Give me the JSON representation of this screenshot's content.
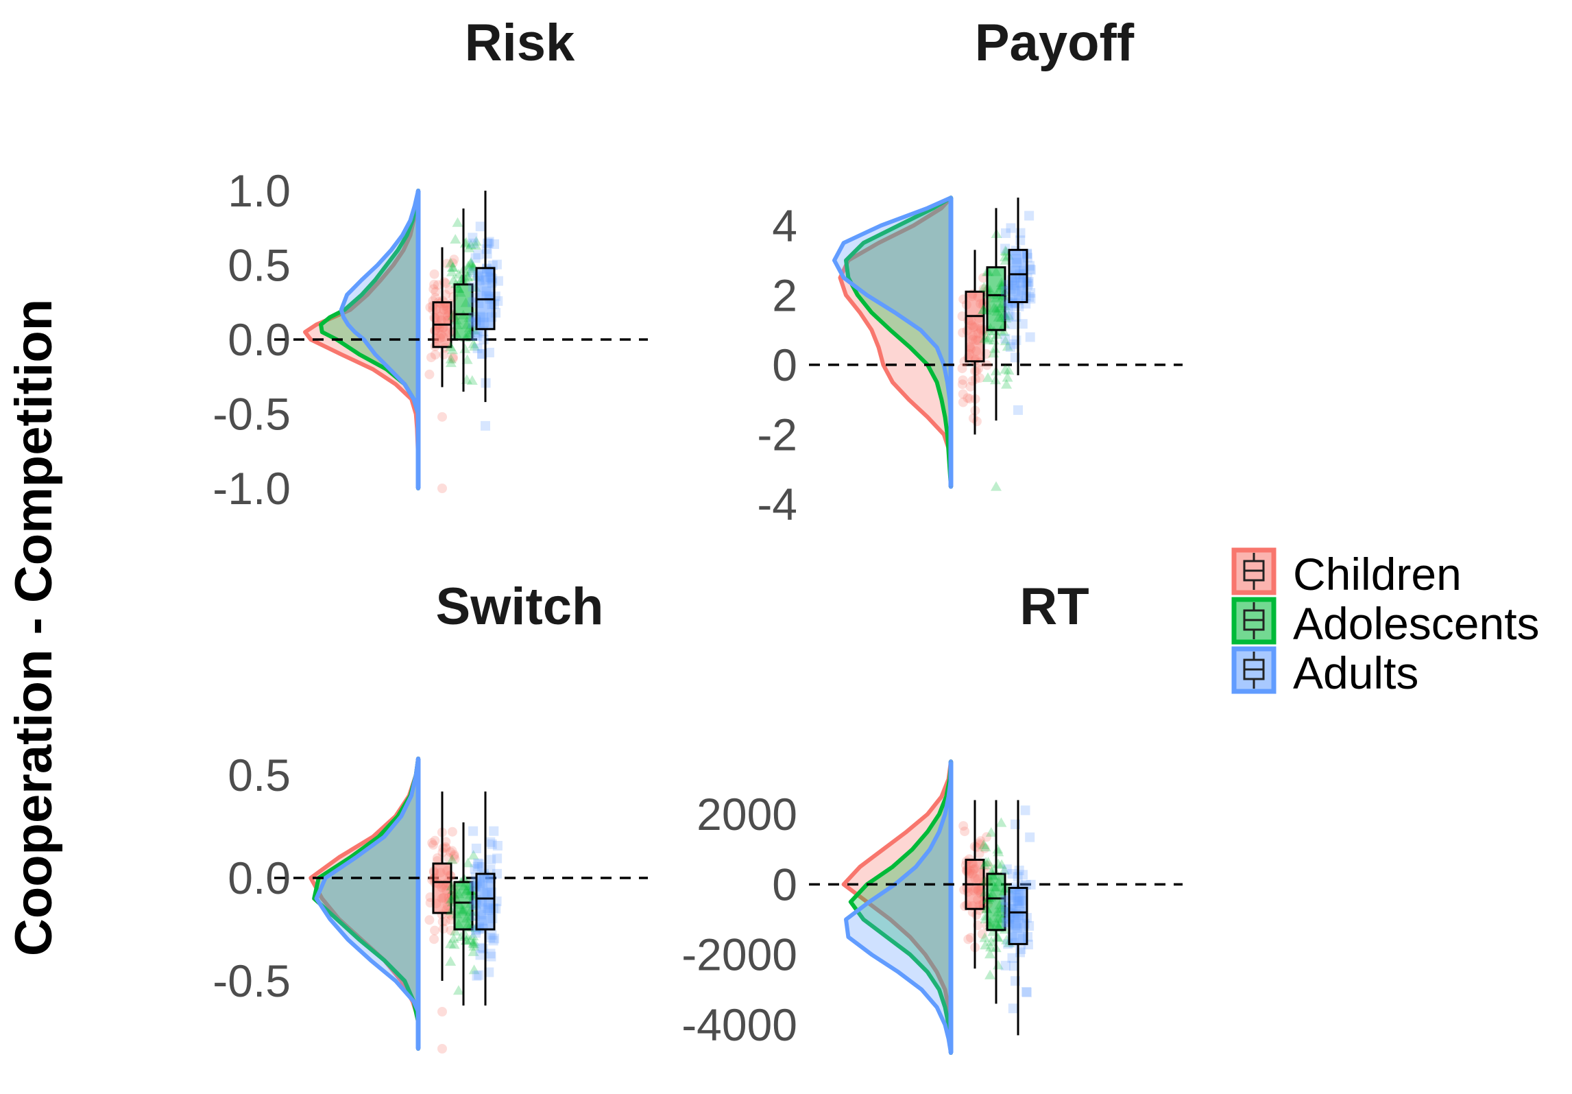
{
  "ylabel": "Cooperation - Competition",
  "colors": {
    "Children": "#f8766d",
    "Adolescents": "#00ba38",
    "Adults": "#619cff"
  },
  "legend": {
    "position": "right",
    "items": [
      {
        "label": "Children",
        "color": "#f8766d"
      },
      {
        "label": "Adolescents",
        "color": "#00ba38"
      },
      {
        "label": "Adults",
        "color": "#619cff"
      }
    ]
  },
  "chart_data": [
    {
      "type": "raincloud",
      "title": "Risk",
      "ylim": [
        -1.0,
        1.0
      ],
      "yticks": [
        1.0,
        0.5,
        0.0,
        -0.5,
        -1.0
      ],
      "ytick_labels": [
        "1.0",
        "0.5",
        "0.0",
        "-0.5",
        "-1.0"
      ],
      "reference_line": 0,
      "groups": [
        {
          "name": "Children",
          "whisker_low": -0.32,
          "q1": -0.05,
          "median": 0.1,
          "q3": 0.25,
          "whisker_high": 0.62,
          "outliers": [
            -0.52,
            -1.0
          ]
        },
        {
          "name": "Adolescents",
          "whisker_low": -0.35,
          "q1": 0.0,
          "median": 0.17,
          "q3": 0.37,
          "whisker_high": 0.88,
          "outliers": []
        },
        {
          "name": "Adults",
          "whisker_low": -0.42,
          "q1": 0.07,
          "median": 0.27,
          "q3": 0.48,
          "whisker_high": 1.0,
          "outliers": [
            -0.58
          ]
        }
      ],
      "density": {
        "y": [
          -1.0,
          -0.8,
          -0.6,
          -0.5,
          -0.4,
          -0.3,
          -0.2,
          -0.1,
          0.0,
          0.05,
          0.1,
          0.15,
          0.2,
          0.3,
          0.4,
          0.5,
          0.6,
          0.7,
          0.8,
          0.9,
          1.0
        ],
        "Children": [
          0.0,
          0.0,
          0.01,
          0.02,
          0.06,
          0.2,
          0.4,
          0.68,
          0.95,
          1.0,
          0.9,
          0.75,
          0.6,
          0.45,
          0.33,
          0.22,
          0.13,
          0.07,
          0.04,
          0.02,
          0.0
        ],
        "Adolescents": [
          0.0,
          0.0,
          0.0,
          0.0,
          0.04,
          0.12,
          0.28,
          0.52,
          0.72,
          0.85,
          0.86,
          0.78,
          0.65,
          0.5,
          0.38,
          0.28,
          0.18,
          0.1,
          0.05,
          0.02,
          0.0
        ],
        "Adults": [
          0.0,
          0.0,
          0.0,
          0.0,
          0.04,
          0.12,
          0.25,
          0.38,
          0.48,
          0.56,
          0.62,
          0.66,
          0.68,
          0.63,
          0.5,
          0.36,
          0.24,
          0.14,
          0.07,
          0.03,
          0.0
        ]
      }
    },
    {
      "type": "raincloud",
      "title": "Payoff",
      "ylim": [
        -4,
        5
      ],
      "yticks": [
        4,
        2,
        0,
        -2,
        -4
      ],
      "ytick_labels": [
        "4",
        "2",
        "0",
        "-2",
        "-4"
      ],
      "reference_line": 0,
      "groups": [
        {
          "name": "Children",
          "whisker_low": -2.0,
          "q1": 0.1,
          "median": 1.4,
          "q3": 2.1,
          "whisker_high": 3.3,
          "outliers": []
        },
        {
          "name": "Adolescents",
          "whisker_low": -1.6,
          "q1": 1.0,
          "median": 2.0,
          "q3": 2.8,
          "whisker_high": 4.5,
          "outliers": [
            -3.5
          ]
        },
        {
          "name": "Adults",
          "whisker_low": -0.3,
          "q1": 1.8,
          "median": 2.6,
          "q3": 3.3,
          "whisker_high": 4.8,
          "outliers": [
            -1.3
          ]
        }
      ],
      "density": {
        "y": [
          -3.5,
          -3.0,
          -2.5,
          -2.0,
          -1.5,
          -1.0,
          -0.5,
          0.0,
          0.5,
          1.0,
          1.5,
          2.0,
          2.5,
          3.0,
          3.5,
          4.0,
          4.5,
          4.8
        ],
        "Children": [
          0.0,
          0.0,
          0.01,
          0.06,
          0.2,
          0.36,
          0.5,
          0.58,
          0.62,
          0.68,
          0.78,
          0.9,
          0.95,
          0.88,
          0.62,
          0.32,
          0.08,
          0.0
        ],
        "Adolescents": [
          0.0,
          0.01,
          0.02,
          0.03,
          0.05,
          0.08,
          0.12,
          0.2,
          0.35,
          0.52,
          0.68,
          0.8,
          0.88,
          0.9,
          0.75,
          0.45,
          0.15,
          0.0
        ],
        "Adults": [
          0.0,
          0.0,
          0.0,
          0.0,
          0.0,
          0.01,
          0.03,
          0.06,
          0.12,
          0.26,
          0.48,
          0.72,
          0.92,
          1.0,
          0.92,
          0.6,
          0.2,
          0.0
        ]
      }
    },
    {
      "type": "raincloud",
      "title": "Switch",
      "ylim": [
        -0.85,
        0.6
      ],
      "yticks": [
        0.5,
        0.0,
        -0.5
      ],
      "ytick_labels": [
        "0.5",
        "0.0",
        "-0.5"
      ],
      "reference_line": 0,
      "groups": [
        {
          "name": "Children",
          "whisker_low": -0.5,
          "q1": -0.17,
          "median": -0.02,
          "q3": 0.07,
          "whisker_high": 0.42,
          "outliers": [
            -0.65,
            -0.83
          ]
        },
        {
          "name": "Adolescents",
          "whisker_low": -0.62,
          "q1": -0.25,
          "median": -0.12,
          "q3": -0.02,
          "whisker_high": 0.27,
          "outliers": []
        },
        {
          "name": "Adults",
          "whisker_low": -0.62,
          "q1": -0.25,
          "median": -0.1,
          "q3": 0.02,
          "whisker_high": 0.42,
          "outliers": []
        }
      ],
      "density": {
        "y": [
          -0.83,
          -0.7,
          -0.65,
          -0.6,
          -0.5,
          -0.4,
          -0.3,
          -0.2,
          -0.1,
          0.0,
          0.1,
          0.2,
          0.3,
          0.4,
          0.5,
          0.58
        ],
        "Children": [
          0.0,
          0.0,
          0.02,
          0.05,
          0.15,
          0.3,
          0.5,
          0.7,
          0.85,
          0.95,
          0.7,
          0.4,
          0.2,
          0.08,
          0.02,
          0.0
        ],
        "Adolescents": [
          0.0,
          0.0,
          0.02,
          0.04,
          0.12,
          0.3,
          0.52,
          0.72,
          0.92,
          0.88,
          0.6,
          0.35,
          0.18,
          0.07,
          0.02,
          0.0
        ],
        "Adults": [
          0.0,
          0.0,
          0.0,
          0.04,
          0.2,
          0.42,
          0.62,
          0.78,
          0.9,
          0.82,
          0.55,
          0.3,
          0.15,
          0.06,
          0.02,
          0.0
        ]
      }
    },
    {
      "type": "raincloud",
      "title": "RT",
      "ylim": [
        -4800,
        3700
      ],
      "yticks": [
        2000,
        0,
        -2000,
        -4000
      ],
      "ytick_labels": [
        "2000",
        "0",
        "-2000",
        "-4000"
      ],
      "reference_line": 0,
      "groups": [
        {
          "name": "Children",
          "whisker_low": -2400,
          "q1": -700,
          "median": 0,
          "q3": 700,
          "whisker_high": 2400,
          "outliers": []
        },
        {
          "name": "Adolescents",
          "whisker_low": -3400,
          "q1": -1300,
          "median": -400,
          "q3": 300,
          "whisker_high": 2400,
          "outliers": []
        },
        {
          "name": "Adults",
          "whisker_low": -4300,
          "q1": -1700,
          "median": -800,
          "q3": -100,
          "whisker_high": 2400,
          "outliers": []
        }
      ],
      "density": {
        "y": [
          -4800,
          -4400,
          -4000,
          -3500,
          -3000,
          -2500,
          -2000,
          -1500,
          -1000,
          -500,
          0,
          500,
          1000,
          1500,
          2000,
          2500,
          3000,
          3500
        ],
        "Children": [
          0.0,
          0.0,
          0.01,
          0.02,
          0.05,
          0.12,
          0.22,
          0.35,
          0.52,
          0.72,
          0.92,
          0.78,
          0.58,
          0.38,
          0.2,
          0.08,
          0.02,
          0.0
        ],
        "Adolescents": [
          0.0,
          0.01,
          0.02,
          0.05,
          0.1,
          0.2,
          0.35,
          0.55,
          0.75,
          0.86,
          0.72,
          0.5,
          0.33,
          0.2,
          0.1,
          0.04,
          0.01,
          0.0
        ],
        "Adults": [
          0.0,
          0.02,
          0.05,
          0.12,
          0.25,
          0.45,
          0.68,
          0.88,
          0.9,
          0.7,
          0.48,
          0.3,
          0.18,
          0.1,
          0.05,
          0.02,
          0.0,
          0.0
        ]
      }
    }
  ]
}
